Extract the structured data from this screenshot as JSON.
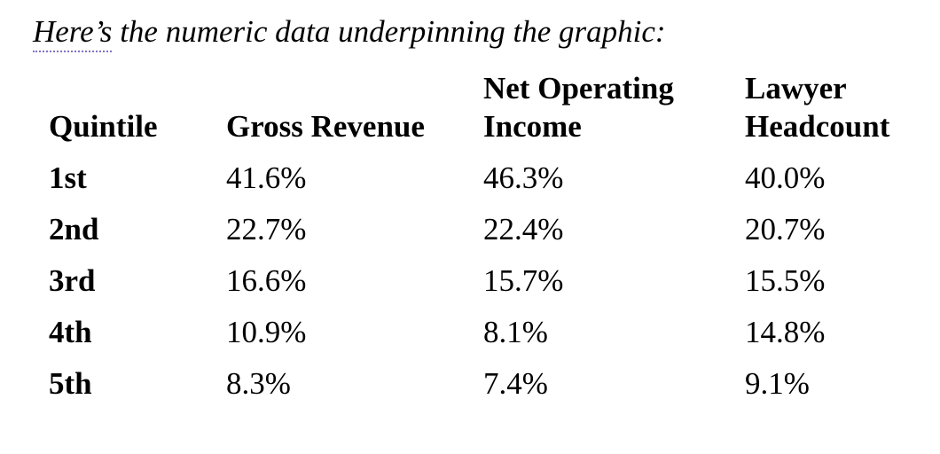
{
  "page": {
    "background": "#ffffff",
    "text_color": "#000000"
  },
  "heading": {
    "word": "Here’s",
    "rest": " the numeric data underpinning the graphic:",
    "spellcheck_underline_color": "#7c72c4"
  },
  "table": {
    "headers": [
      "Quintile",
      "Gross Revenue",
      "Net Operating Income",
      "Lawyer Headcount"
    ],
    "rows": [
      [
        "1st",
        "41.6%",
        "46.3%",
        "40.0%"
      ],
      [
        "2nd",
        "22.7%",
        "22.4%",
        "20.7%"
      ],
      [
        "3rd",
        "16.6%",
        "15.7%",
        "15.5%"
      ],
      [
        "4th",
        "10.9%",
        "8.1%",
        "14.8%"
      ],
      [
        "5th",
        "8.3%",
        "7.4%",
        "9.1%"
      ]
    ]
  },
  "chart_data": {
    "type": "table",
    "title": "Here’s the numeric data underpinning the graphic:",
    "categories": [
      "1st",
      "2nd",
      "3rd",
      "4th",
      "5th"
    ],
    "series": [
      {
        "name": "Gross Revenue",
        "values": [
          41.6,
          22.7,
          16.6,
          10.9,
          8.3
        ]
      },
      {
        "name": "Net Operating Income",
        "values": [
          46.3,
          22.4,
          15.7,
          8.1,
          7.4
        ]
      },
      {
        "name": "Lawyer Headcount",
        "values": [
          40.0,
          20.7,
          15.5,
          14.8,
          9.1
        ]
      }
    ],
    "unit": "%"
  }
}
